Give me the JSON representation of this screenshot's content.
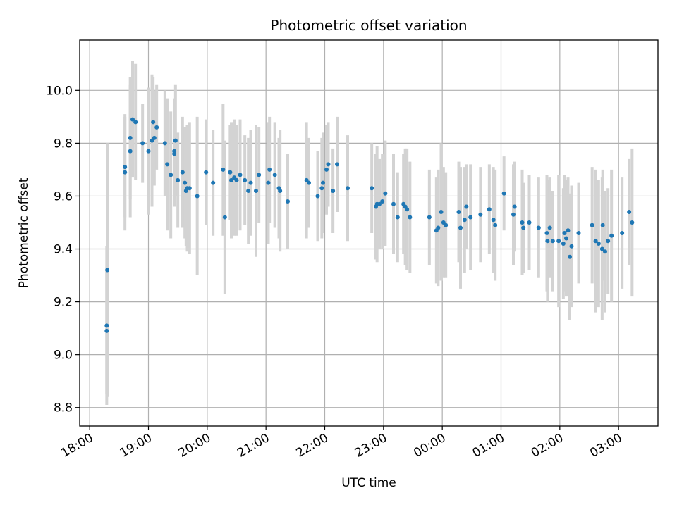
{
  "chart_data": {
    "type": "scatter",
    "title": "Photometric offset variation",
    "xlabel": "UTC time",
    "ylabel": "Photometric offset",
    "x_unit": "hours since 18:00 UTC",
    "xlim": [
      -0.17,
      9.67
    ],
    "ylim": [
      8.73,
      10.19
    ],
    "x_ticks": [
      {
        "value": 0,
        "label": "18:00"
      },
      {
        "value": 1,
        "label": "19:00"
      },
      {
        "value": 2,
        "label": "20:00"
      },
      {
        "value": 3,
        "label": "21:00"
      },
      {
        "value": 4,
        "label": "22:00"
      },
      {
        "value": 5,
        "label": "23:00"
      },
      {
        "value": 6,
        "label": "00:00"
      },
      {
        "value": 7,
        "label": "01:00"
      },
      {
        "value": 8,
        "label": "02:00"
      },
      {
        "value": 9,
        "label": "03:00"
      }
    ],
    "y_ticks": [
      {
        "value": 8.8,
        "label": "8.8"
      },
      {
        "value": 9.0,
        "label": "9.0"
      },
      {
        "value": 9.2,
        "label": "9.2"
      },
      {
        "value": 9.4,
        "label": "9.4"
      },
      {
        "value": 9.6,
        "label": "9.6"
      },
      {
        "value": 9.8,
        "label": "9.8"
      },
      {
        "value": 10.0,
        "label": "10.0"
      }
    ],
    "grid": true,
    "colors": {
      "point": "#1f77b4",
      "errorbar": "#d3d3d3",
      "grid": "#b0b0b0"
    },
    "series": [
      {
        "x": [
          0.29,
          0.29,
          0.3,
          0.6,
          0.6,
          0.69,
          0.69,
          0.73,
          0.78,
          0.9,
          1.0,
          1.06,
          1.08,
          1.1,
          1.14,
          1.28,
          1.32,
          1.38,
          1.44,
          1.44,
          1.46,
          1.5,
          1.58,
          1.62,
          1.64,
          1.66,
          1.7,
          1.83,
          1.98,
          2.1,
          2.27,
          2.3,
          2.39,
          2.41,
          2.46,
          2.5,
          2.56,
          2.64,
          2.7,
          2.74,
          2.83,
          2.88,
          3.04,
          3.06,
          3.15,
          3.22,
          3.24,
          3.37,
          3.69,
          3.73,
          3.88,
          3.95,
          3.97,
          4.03,
          4.06,
          4.14,
          4.21,
          4.39,
          4.8,
          4.87,
          4.89,
          4.93,
          4.98,
          5.03,
          5.17,
          5.24,
          5.34,
          5.37,
          5.4,
          5.45,
          5.78,
          5.9,
          5.93,
          5.98,
          6.02,
          6.06,
          6.28,
          6.31,
          6.38,
          6.41,
          6.48,
          6.65,
          6.8,
          6.87,
          6.9,
          7.05,
          7.21,
          7.23,
          7.36,
          7.38,
          7.48,
          7.64,
          7.78,
          7.79,
          7.83,
          7.88,
          7.98,
          8.06,
          8.08,
          8.11,
          8.14,
          8.17,
          8.2,
          8.32,
          8.55,
          8.61,
          8.66,
          8.72,
          8.73,
          8.77,
          8.82,
          8.88,
          9.06,
          9.18,
          9.23
        ],
        "y": [
          9.09,
          9.11,
          9.32,
          9.69,
          9.71,
          9.77,
          9.82,
          9.89,
          9.88,
          9.8,
          9.77,
          9.81,
          9.88,
          9.82,
          9.86,
          9.8,
          9.72,
          9.68,
          9.77,
          9.76,
          9.81,
          9.66,
          9.69,
          9.65,
          9.62,
          9.63,
          9.63,
          9.6,
          9.69,
          9.65,
          9.7,
          9.52,
          9.69,
          9.66,
          9.67,
          9.66,
          9.68,
          9.66,
          9.62,
          9.65,
          9.62,
          9.68,
          9.65,
          9.7,
          9.68,
          9.63,
          9.62,
          9.58,
          9.66,
          9.65,
          9.6,
          9.63,
          9.65,
          9.7,
          9.72,
          9.62,
          9.72,
          9.63,
          9.63,
          9.56,
          9.57,
          9.57,
          9.58,
          9.61,
          9.57,
          9.52,
          9.57,
          9.56,
          9.55,
          9.52,
          9.52,
          9.47,
          9.48,
          9.54,
          9.5,
          9.49,
          9.54,
          9.48,
          9.51,
          9.56,
          9.52,
          9.53,
          9.55,
          9.51,
          9.49,
          9.61,
          9.53,
          9.56,
          9.5,
          9.48,
          9.5,
          9.48,
          9.46,
          9.43,
          9.48,
          9.43,
          9.43,
          9.42,
          9.46,
          9.44,
          9.47,
          9.37,
          9.41,
          9.46,
          9.49,
          9.43,
          9.42,
          9.4,
          9.49,
          9.39,
          9.43,
          9.45,
          9.46,
          9.54,
          9.5
        ],
        "err": [
          0.24,
          0.3,
          0.48,
          0.22,
          0.19,
          0.25,
          0.23,
          0.22,
          0.22,
          0.15,
          0.24,
          0.25,
          0.17,
          0.18,
          0.16,
          0.2,
          0.25,
          0.24,
          0.2,
          0.2,
          0.21,
          0.18,
          0.21,
          0.21,
          0.21,
          0.24,
          0.25,
          0.3,
          0.2,
          0.2,
          0.25,
          0.29,
          0.18,
          0.22,
          0.22,
          0.21,
          0.21,
          0.17,
          0.2,
          0.2,
          0.25,
          0.18,
          0.23,
          0.2,
          0.2,
          0.19,
          0.23,
          0.18,
          0.22,
          0.17,
          0.17,
          0.19,
          0.19,
          0.17,
          0.16,
          0.16,
          0.18,
          0.2,
          0.17,
          0.2,
          0.22,
          0.17,
          0.18,
          0.2,
          0.19,
          0.17,
          0.19,
          0.22,
          0.23,
          0.21,
          0.18,
          0.2,
          0.22,
          0.26,
          0.21,
          0.2,
          0.19,
          0.23,
          0.2,
          0.16,
          0.2,
          0.18,
          0.17,
          0.2,
          0.21,
          0.14,
          0.19,
          0.17,
          0.2,
          0.17,
          0.18,
          0.19,
          0.22,
          0.23,
          0.19,
          0.19,
          0.25,
          0.21,
          0.22,
          0.22,
          0.2,
          0.24,
          0.23,
          0.19,
          0.22,
          0.27,
          0.24,
          0.27,
          0.21,
          0.23,
          0.2,
          0.25,
          0.21,
          0.2,
          0.28
        ]
      }
    ]
  }
}
